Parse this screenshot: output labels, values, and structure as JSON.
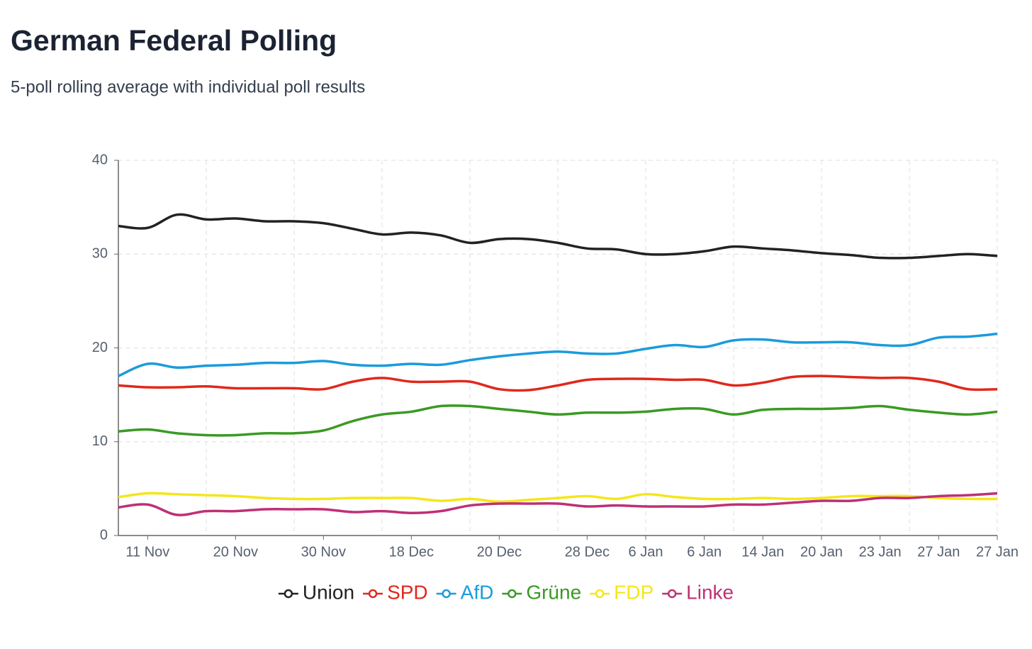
{
  "chart_data": {
    "type": "line",
    "title": "German Federal Polling",
    "subtitle": "5-poll rolling average with individual poll results",
    "categories": [
      null,
      "11 Nov",
      null,
      null,
      "20 Nov",
      null,
      null,
      "30 Nov",
      null,
      null,
      "18 Dec",
      null,
      null,
      "20 Dec",
      null,
      null,
      "28 Dec",
      null,
      "6 Jan",
      null,
      "6 Jan",
      null,
      "14 Jan",
      null,
      "20 Jan",
      null,
      "23 Jan",
      null,
      "27 Jan",
      null,
      "27 Jan"
    ],
    "series": [
      {
        "name": "Union",
        "color": "#222222",
        "values": [
          33.0,
          32.8,
          34.2,
          33.7,
          33.8,
          33.5,
          33.5,
          33.3,
          32.7,
          32.1,
          32.3,
          32.0,
          31.2,
          31.6,
          31.6,
          31.2,
          30.6,
          30.5,
          30.0,
          30.0,
          30.3,
          30.8,
          30.6,
          30.4,
          30.1,
          29.9,
          29.6,
          29.6,
          29.8,
          30.0,
          29.8
        ]
      },
      {
        "name": "SPD",
        "color": "#e0281c",
        "values": [
          16.0,
          15.8,
          15.8,
          15.9,
          15.7,
          15.7,
          15.7,
          15.6,
          16.4,
          16.8,
          16.4,
          16.4,
          16.4,
          15.6,
          15.5,
          16.0,
          16.6,
          16.7,
          16.7,
          16.6,
          16.6,
          16.0,
          16.3,
          16.9,
          17.0,
          16.9,
          16.8,
          16.8,
          16.4,
          15.6,
          15.6
        ]
      },
      {
        "name": "AfD",
        "color": "#1a9bdc",
        "values": [
          17.0,
          18.3,
          17.9,
          18.1,
          18.2,
          18.4,
          18.4,
          18.6,
          18.2,
          18.1,
          18.3,
          18.2,
          18.7,
          19.1,
          19.4,
          19.6,
          19.4,
          19.4,
          19.9,
          20.3,
          20.1,
          20.8,
          20.9,
          20.6,
          20.6,
          20.6,
          20.3,
          20.3,
          21.1,
          21.2,
          21.5
        ]
      },
      {
        "name": "Grüne",
        "color": "#3a9a23",
        "values": [
          11.1,
          11.3,
          10.9,
          10.7,
          10.7,
          10.9,
          10.9,
          11.2,
          12.2,
          12.9,
          13.2,
          13.8,
          13.8,
          13.5,
          13.2,
          12.9,
          13.1,
          13.1,
          13.2,
          13.5,
          13.5,
          12.9,
          13.4,
          13.5,
          13.5,
          13.6,
          13.8,
          13.4,
          13.1,
          12.9,
          13.2
        ]
      },
      {
        "name": "FDP",
        "color": "#f5e61a",
        "values": [
          4.1,
          4.5,
          4.4,
          4.3,
          4.2,
          4.0,
          3.9,
          3.9,
          4.0,
          4.0,
          4.0,
          3.7,
          3.9,
          3.6,
          3.8,
          4.0,
          4.2,
          3.9,
          4.4,
          4.1,
          3.9,
          3.9,
          4.0,
          3.9,
          4.0,
          4.2,
          4.2,
          4.2,
          4.0,
          3.9,
          3.9
        ]
      },
      {
        "name": "Linke",
        "color": "#be3075",
        "values": [
          3.0,
          3.3,
          2.2,
          2.6,
          2.6,
          2.8,
          2.8,
          2.8,
          2.5,
          2.6,
          2.4,
          2.6,
          3.2,
          3.4,
          3.4,
          3.4,
          3.1,
          3.2,
          3.1,
          3.1,
          3.1,
          3.3,
          3.3,
          3.5,
          3.7,
          3.7,
          4.0,
          4.0,
          4.2,
          4.3,
          4.5
        ]
      }
    ],
    "ylim": [
      0,
      40
    ],
    "yticks": [
      0,
      10,
      20,
      30,
      40
    ],
    "grid": true
  }
}
